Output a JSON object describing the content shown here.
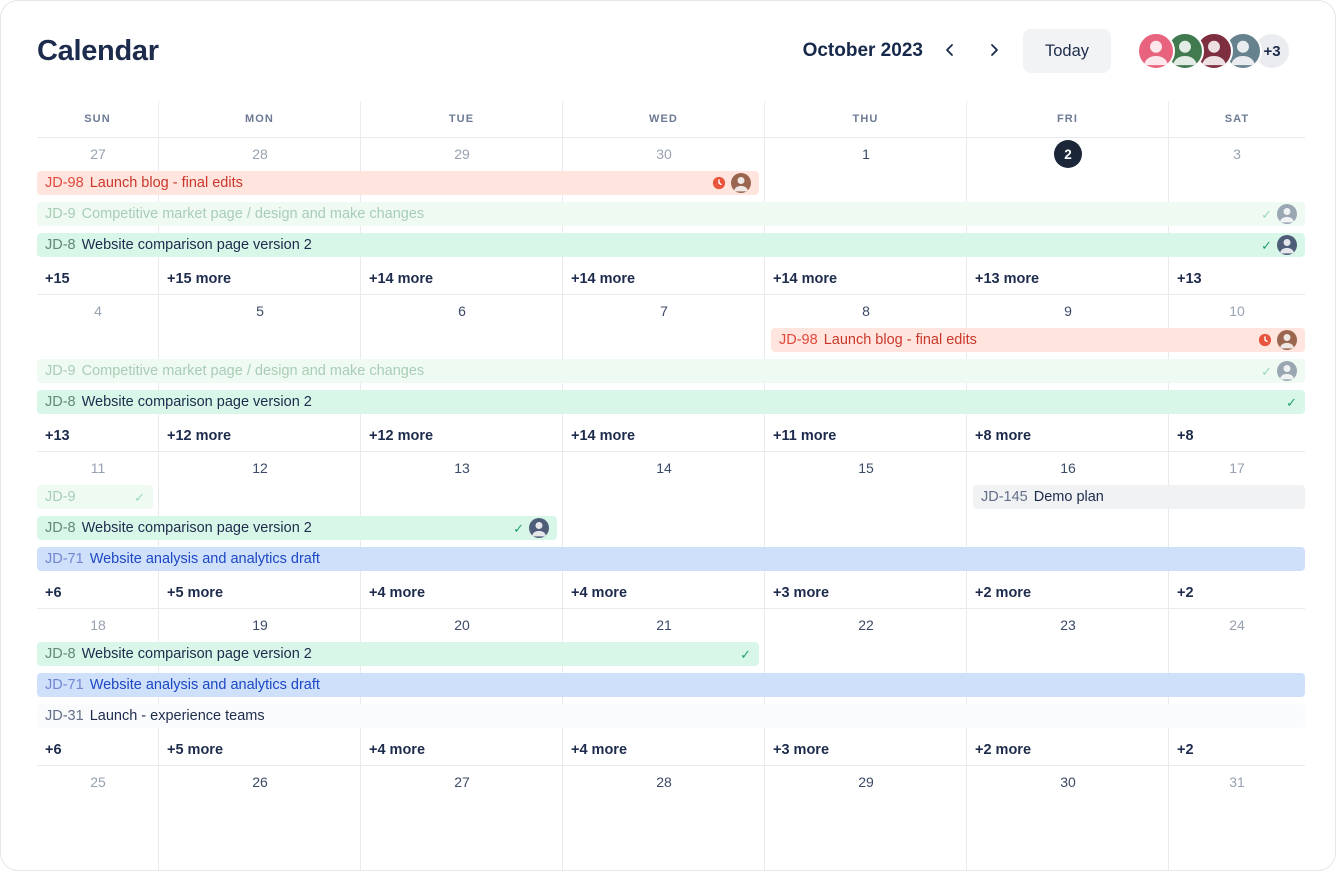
{
  "header": {
    "title": "Calendar",
    "month_label": "October 2023",
    "today_label": "Today",
    "avatar_overflow": "+3",
    "avatars": [
      {
        "name": "user-avatar-1",
        "color": "#E8637E"
      },
      {
        "name": "user-avatar-2",
        "color": "#417A4E"
      },
      {
        "name": "user-avatar-3",
        "color": "#7E2F3F"
      },
      {
        "name": "user-avatar-4",
        "color": "#67828F"
      }
    ]
  },
  "palette": {
    "red": {
      "bg": "#FFE5DD",
      "key": "#E2483D",
      "title": "#C9372C"
    },
    "green": {
      "bg": "#D9F7E8",
      "key": "#628A76",
      "title": "#1D2B4C"
    },
    "green_muted": {
      "bg": "#EFFAF3",
      "key": "#A8CDB6",
      "title": "#A8CDB6"
    },
    "blue": {
      "bg": "#CFE0FB",
      "key": "#7287D3",
      "title": "#1D47C4"
    },
    "gray": {
      "bg": "#F1F2F4",
      "key": "#626F86",
      "title": "#1D2B4C"
    },
    "plain": {
      "bg": "#FAFBFC",
      "key": "#626F86",
      "title": "#1D2B4C"
    },
    "icons": {
      "check": "#22A06B",
      "check_muted": "#98D8B4",
      "overdue": "#E9553C"
    },
    "today_bg": "#1B2638",
    "today_fg": "#FFFFFF"
  },
  "day_headers": [
    "SUN",
    "MON",
    "TUE",
    "WED",
    "THU",
    "FRI",
    "SAT"
  ],
  "weeks": [
    {
      "dates": [
        {
          "d": "27",
          "muted": true
        },
        {
          "d": "28",
          "muted": true
        },
        {
          "d": "29",
          "muted": true
        },
        {
          "d": "30",
          "muted": true
        },
        {
          "d": "1"
        },
        {
          "d": "2",
          "today": true
        },
        {
          "d": "3",
          "muted": true
        }
      ],
      "rows": [
        [
          {
            "key": "JD-98",
            "title": "Launch blog - final edits",
            "type": "red",
            "start": 1,
            "end": 4,
            "icons": [
              "overdue",
              "avatar"
            ],
            "avatar": "#9A6650"
          }
        ],
        [
          {
            "key": "JD-9",
            "title": "Competitive market page / design and make changes",
            "type": "green_muted",
            "start": 1,
            "end": 7,
            "icons": [
              "check_muted",
              "avatar"
            ],
            "avatar": "#9AA6B2"
          }
        ],
        [
          {
            "key": "JD-8",
            "title": "Website comparison page version 2",
            "type": "green",
            "start": 1,
            "end": 7,
            "icons": [
              "check",
              "avatar"
            ],
            "avatar": "#4F5E78"
          }
        ]
      ],
      "more": [
        "+15",
        "+15 more",
        "+14 more",
        "+14 more",
        "+14 more",
        "+13 more",
        "+13"
      ]
    },
    {
      "dates": [
        {
          "d": "4",
          "muted": true
        },
        {
          "d": "5"
        },
        {
          "d": "6"
        },
        {
          "d": "7"
        },
        {
          "d": "8"
        },
        {
          "d": "9"
        },
        {
          "d": "10",
          "muted": true
        }
      ],
      "rows": [
        [
          {
            "key": "JD-98",
            "title": "Launch blog - final edits",
            "type": "red",
            "start": 5,
            "end": 7,
            "icons": [
              "overdue",
              "avatar"
            ],
            "avatar": "#9A6650"
          }
        ],
        [
          {
            "key": "JD-9",
            "title": "Competitive market page / design and make changes",
            "type": "green_muted",
            "start": 1,
            "end": 7,
            "icons": [
              "check_muted",
              "avatar"
            ],
            "avatar": "#9AA6B2"
          }
        ],
        [
          {
            "key": "JD-8",
            "title": "Website comparison page version 2",
            "type": "green",
            "start": 1,
            "end": 7,
            "icons": [
              "check"
            ]
          }
        ]
      ],
      "more": [
        "+13",
        "+12 more",
        "+12 more",
        "+14 more",
        "+11 more",
        "+8 more",
        "+8"
      ]
    },
    {
      "dates": [
        {
          "d": "11",
          "muted": true
        },
        {
          "d": "12"
        },
        {
          "d": "13"
        },
        {
          "d": "14"
        },
        {
          "d": "15"
        },
        {
          "d": "16"
        },
        {
          "d": "17",
          "muted": true
        }
      ],
      "rows": [
        [
          {
            "key": "JD-9",
            "title": "",
            "type": "green_muted",
            "start": 1,
            "end": 1,
            "icons": [
              "check_muted"
            ]
          },
          {
            "key": "JD-145",
            "title": "Demo plan",
            "type": "gray",
            "start": 6,
            "end": 7,
            "icons": []
          }
        ],
        [
          {
            "key": "JD-8",
            "title": "Website comparison page version 2",
            "type": "green",
            "start": 1,
            "end": 3,
            "icons": [
              "check",
              "avatar"
            ],
            "avatar": "#4F5E78"
          }
        ],
        [
          {
            "key": "JD-71",
            "title": "Website analysis and analytics draft",
            "type": "blue",
            "start": 1,
            "end": 7,
            "icons": []
          }
        ]
      ],
      "more": [
        "+6",
        "+5 more",
        "+4 more",
        "+4 more",
        "+3 more",
        "+2 more",
        "+2"
      ]
    },
    {
      "dates": [
        {
          "d": "18",
          "muted": true
        },
        {
          "d": "19"
        },
        {
          "d": "20"
        },
        {
          "d": "21"
        },
        {
          "d": "22"
        },
        {
          "d": "23"
        },
        {
          "d": "24",
          "muted": true
        }
      ],
      "rows": [
        [
          {
            "key": "JD-8",
            "title": "Website comparison page version 2",
            "type": "green",
            "start": 1,
            "end": 4,
            "icons": [
              "check"
            ]
          }
        ],
        [
          {
            "key": "JD-71",
            "title": "Website analysis and analytics draft",
            "type": "blue",
            "start": 1,
            "end": 7,
            "icons": []
          }
        ],
        [
          {
            "key": "JD-31",
            "title": "Launch - experience teams",
            "type": "plain",
            "start": 1,
            "end": 7,
            "icons": []
          }
        ]
      ],
      "more": [
        "+6",
        "+5 more",
        "+4 more",
        "+4 more",
        "+3 more",
        "+2 more",
        "+2"
      ]
    },
    {
      "dates": [
        {
          "d": "25",
          "muted": true
        },
        {
          "d": "26"
        },
        {
          "d": "27"
        },
        {
          "d": "28"
        },
        {
          "d": "29"
        },
        {
          "d": "30"
        },
        {
          "d": "31",
          "muted": true
        }
      ],
      "rows": [],
      "more": null
    }
  ]
}
